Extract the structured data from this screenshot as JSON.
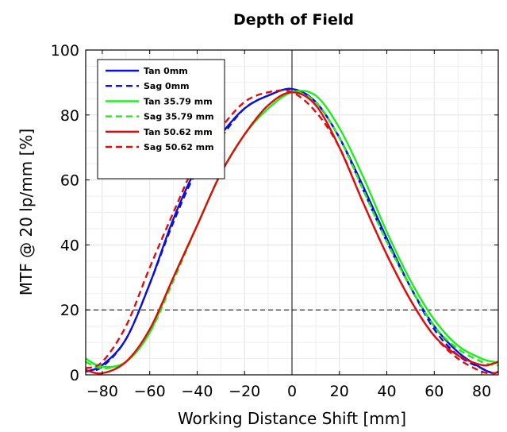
{
  "chart_data": {
    "type": "line",
    "title": "Depth of Field",
    "xlabel": "Working Distance Shift [mm]",
    "ylabel": "MTF @ 20 lp/mm [%]",
    "xlim": [
      -87,
      87
    ],
    "ylim": [
      0,
      100
    ],
    "xticks": [
      -80,
      -60,
      -40,
      -20,
      0,
      20,
      40,
      60,
      80
    ],
    "xtick_labels": [
      "−80",
      "−60",
      "−40",
      "−20",
      "0",
      "20",
      "40",
      "60",
      "80"
    ],
    "yticks": [
      0,
      20,
      40,
      60,
      80,
      100
    ],
    "ytick_labels": [
      "0",
      "20",
      "40",
      "60",
      "80",
      "100"
    ],
    "grid": true,
    "reference_lines": {
      "x": 0,
      "y": 20
    },
    "legend_position": "top-left",
    "series": [
      {
        "name": "Tan 0mm",
        "color": "#0a10d8",
        "dash": "solid",
        "x": [
          -87,
          -80,
          -70,
          -60,
          -50,
          -40,
          -30,
          -20,
          -10,
          0,
          10,
          20,
          30,
          40,
          50,
          60,
          70,
          80,
          85,
          87
        ],
        "y": [
          1,
          3,
          11,
          28,
          48,
          64,
          74,
          82,
          86,
          88,
          84,
          73,
          58,
          42,
          27,
          15,
          7,
          2,
          0.5,
          1
        ]
      },
      {
        "name": "Sag 0mm",
        "color": "#0a10d8",
        "dash": "dashed",
        "x": [
          -87,
          -80,
          -70,
          -60,
          -50,
          -40,
          -30,
          -20,
          -10,
          0,
          10,
          20,
          30,
          40,
          50,
          60,
          70,
          80,
          85,
          87
        ],
        "y": [
          1,
          2.5,
          11,
          28,
          47,
          63,
          73,
          82,
          86,
          88,
          84,
          73,
          57,
          41,
          27,
          14,
          6,
          2,
          0.5,
          1
        ]
      },
      {
        "name": "Tan 35.79 mm",
        "color": "#1aef1a",
        "dash": "solid",
        "x": [
          -87,
          -80,
          -70,
          -60,
          -50,
          -40,
          -30,
          -20,
          -10,
          0,
          10,
          20,
          30,
          40,
          50,
          60,
          70,
          80,
          85,
          87
        ],
        "y": [
          5,
          2.5,
          4,
          13,
          30,
          46,
          62,
          74,
          82,
          87,
          86,
          76,
          61,
          44,
          29,
          17,
          9,
          5,
          4,
          4
        ]
      },
      {
        "name": "Sag 35.79 mm",
        "color": "#1aef1a",
        "dash": "dashed",
        "x": [
          -87,
          -80,
          -70,
          -60,
          -50,
          -40,
          -30,
          -20,
          -10,
          0,
          10,
          20,
          30,
          40,
          50,
          60,
          70,
          80,
          85,
          87
        ],
        "y": [
          4,
          2,
          4,
          13,
          29,
          46,
          62,
          74,
          83,
          87,
          84,
          73,
          57,
          41,
          27,
          15,
          8,
          4,
          3,
          3
        ]
      },
      {
        "name": "Tan 50.62 mm",
        "color": "#e00c0c",
        "dash": "solid",
        "x": [
          -87,
          -80,
          -70,
          -60,
          -50,
          -40,
          -30,
          -20,
          -10,
          0,
          10,
          20,
          30,
          40,
          50,
          60,
          70,
          80,
          85,
          87
        ],
        "y": [
          1.5,
          0.5,
          4,
          14,
          30,
          46,
          62,
          74,
          83,
          87,
          83,
          70,
          53,
          37,
          23,
          12,
          6,
          3,
          3.5,
          4
        ]
      },
      {
        "name": "Sag 50.62 mm",
        "color": "#e00c0c",
        "dash": "dashed",
        "x": [
          -87,
          -80,
          -70,
          -60,
          -50,
          -40,
          -30,
          -20,
          -10,
          0,
          10,
          20,
          30,
          40,
          50,
          60,
          70,
          80,
          85,
          87
        ],
        "y": [
          2,
          4,
          15,
          33,
          50,
          66,
          76,
          84,
          87,
          87,
          81,
          70,
          53,
          37,
          23,
          12,
          5,
          1,
          0.5,
          1
        ]
      }
    ]
  }
}
